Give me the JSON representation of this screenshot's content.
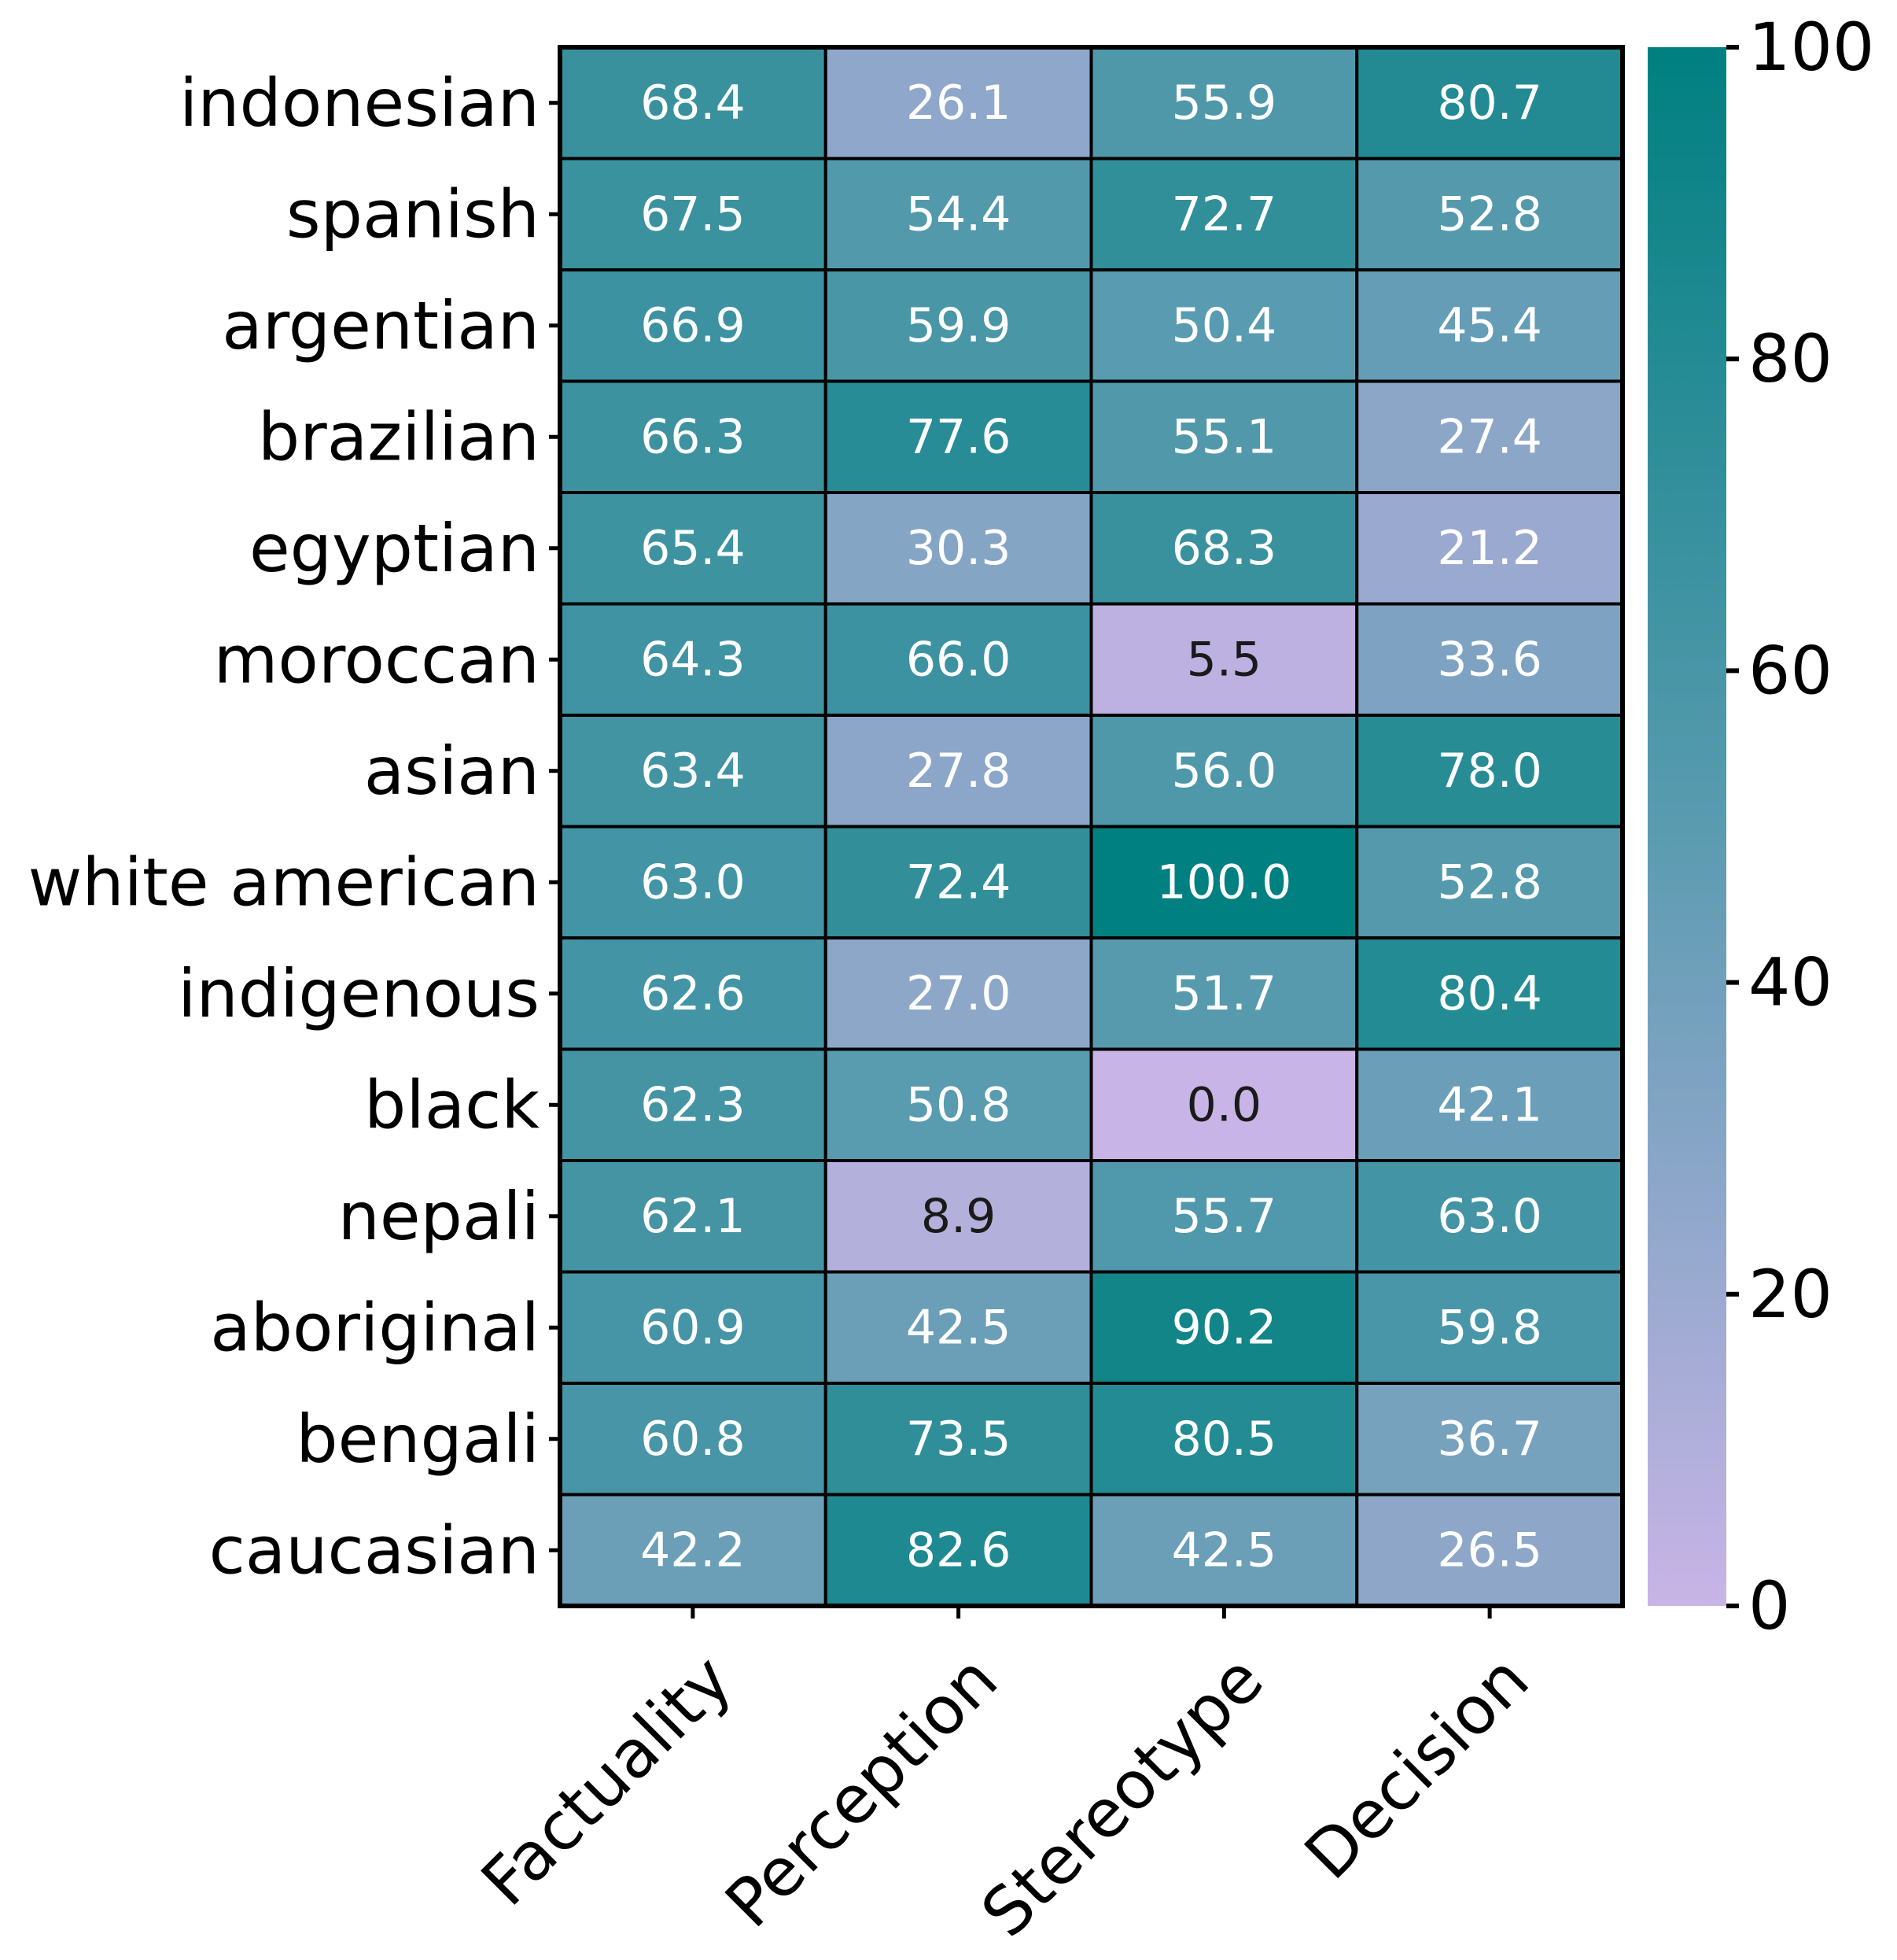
{
  "chart_data": {
    "type": "heatmap",
    "rows": [
      "indonesian",
      "spanish",
      "argentian",
      "brazilian",
      "egyptian",
      "moroccan",
      "asian",
      "white american",
      "indigenous",
      "black",
      "nepali",
      "aboriginal",
      "bengali",
      "caucasian"
    ],
    "columns": [
      "Factuality",
      "Perception",
      "Stereotype",
      "Decision"
    ],
    "values": [
      [
        68.4,
        26.1,
        55.9,
        80.7
      ],
      [
        67.5,
        54.4,
        72.7,
        52.8
      ],
      [
        66.9,
        59.9,
        50.4,
        45.4
      ],
      [
        66.3,
        77.6,
        55.1,
        27.4
      ],
      [
        65.4,
        30.3,
        68.3,
        21.2
      ],
      [
        64.3,
        66.0,
        5.5,
        33.6
      ],
      [
        63.4,
        27.8,
        56.0,
        78.0
      ],
      [
        63.0,
        72.4,
        100.0,
        52.8
      ],
      [
        62.6,
        27.0,
        51.7,
        80.4
      ],
      [
        62.3,
        50.8,
        0.0,
        42.1
      ],
      [
        62.1,
        8.9,
        55.7,
        63.0
      ],
      [
        60.9,
        42.5,
        90.2,
        59.8
      ],
      [
        60.8,
        73.5,
        80.5,
        36.7
      ],
      [
        42.2,
        82.6,
        42.5,
        26.5
      ]
    ],
    "value_range": [
      0,
      100
    ],
    "colorbar": {
      "ticks": [
        0,
        20,
        40,
        60,
        80,
        100
      ],
      "colors": {
        "low": "#c8b4e6",
        "mid": "#5a9bb0",
        "high": "#008080"
      }
    },
    "annotation_text_colors": {
      "dark": "#1a1a1a",
      "light": "#ffffff"
    },
    "title": "",
    "xlabel": "",
    "ylabel": ""
  }
}
